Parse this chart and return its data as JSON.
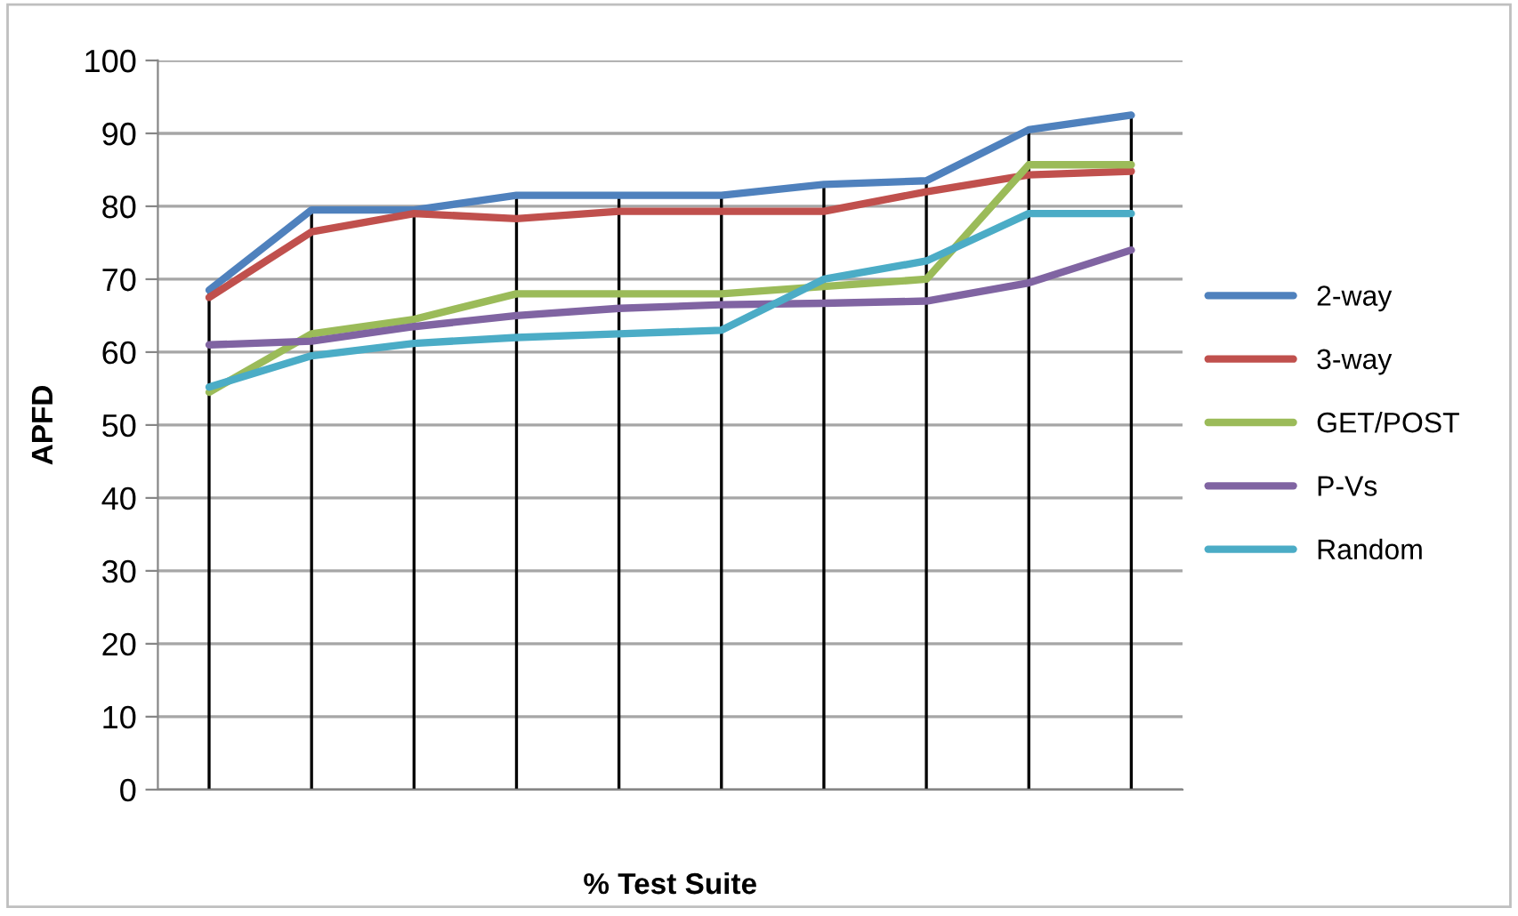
{
  "chart_data": {
    "type": "line",
    "xlabel": "% Test Suite",
    "ylabel": "APFD",
    "categories": [
      null,
      null,
      null,
      null,
      null,
      null,
      null,
      null,
      null,
      null
    ],
    "series": [
      {
        "name": "2-way",
        "color": "#4f81bd",
        "values": [
          68.5,
          79.5,
          79.5,
          81.5,
          81.5,
          81.5,
          83,
          83.5,
          90.5,
          92.5
        ]
      },
      {
        "name": "3-way",
        "color": "#c0504d",
        "values": [
          67.5,
          76.5,
          79,
          78.3,
          79.3,
          79.3,
          79.3,
          82,
          84.3,
          84.8
        ]
      },
      {
        "name": "GET/POST",
        "color": "#9bbb59",
        "values": [
          54.5,
          62.5,
          64.5,
          68,
          68,
          68,
          69,
          70,
          85.7,
          85.7
        ]
      },
      {
        "name": "P-Vs",
        "color": "#8064a2",
        "values": [
          61,
          61.5,
          63.5,
          65,
          66,
          66.5,
          66.7,
          67,
          69.5,
          74
        ]
      },
      {
        "name": "Random",
        "color": "#4bacc6",
        "values": [
          55.2,
          59.5,
          61.2,
          62,
          62.5,
          63,
          70,
          72.5,
          79,
          79
        ]
      }
    ],
    "ylim": [
      0,
      100
    ],
    "yticks": [
      0,
      10,
      20,
      30,
      40,
      50,
      60,
      70,
      80,
      90,
      100
    ],
    "grid": true,
    "legend": "right",
    "marker": "none",
    "line_style": "solid"
  }
}
